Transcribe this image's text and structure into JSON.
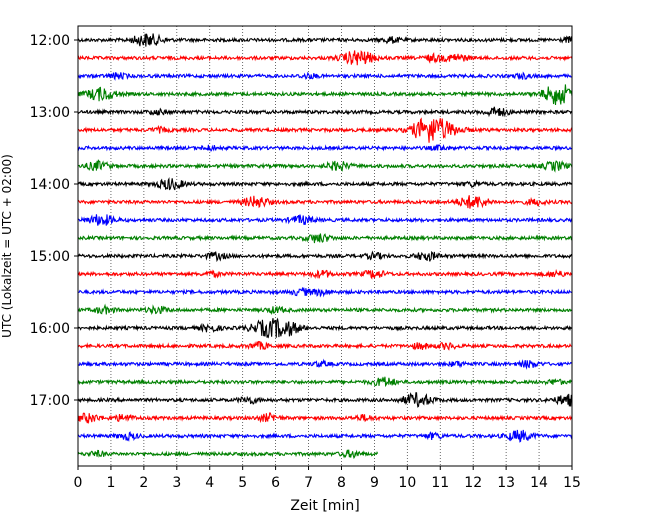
{
  "chart_data": {
    "type": "line",
    "title": "",
    "xlabel": "Zeit  [min]",
    "ylabel": "UTC (Lokalzeit = UTC + 02:00)",
    "xlim": [
      0,
      15
    ],
    "x_ticks": [
      "0",
      "1",
      "2",
      "3",
      "4",
      "5",
      "6",
      "7",
      "8",
      "9",
      "10",
      "11",
      "12",
      "13",
      "14",
      "15"
    ],
    "y_ticks": [
      {
        "label": "12:00",
        "row": 0
      },
      {
        "label": "13:00",
        "row": 4
      },
      {
        "label": "14:00",
        "row": 8
      },
      {
        "label": "15:00",
        "row": 12
      },
      {
        "label": "16:00",
        "row": 16
      },
      {
        "label": "17:00",
        "row": 20
      }
    ],
    "grid": "vertical dotted",
    "row_colors": [
      "#000000",
      "#ff0000",
      "#0000ff",
      "#008000"
    ],
    "rows": [
      {
        "start": "12:00",
        "x_end": 15,
        "events": [
          [
            2.1,
            6
          ],
          [
            9.5,
            2.5
          ],
          [
            15,
            2.5
          ]
        ]
      },
      {
        "start": "12:15",
        "x_end": 15,
        "events": [
          [
            8.5,
            7
          ],
          [
            10.8,
            3
          ],
          [
            11.5,
            3.5
          ]
        ]
      },
      {
        "start": "12:30",
        "x_end": 15,
        "events": [
          [
            1.2,
            2.5
          ],
          [
            7,
            2
          ],
          [
            13.5,
            2
          ]
        ]
      },
      {
        "start": "12:45",
        "x_end": 15,
        "events": [
          [
            0.7,
            6
          ],
          [
            14.5,
            6
          ],
          [
            14.7,
            5
          ]
        ]
      },
      {
        "start": "13:00",
        "x_end": 15,
        "events": [
          [
            2.4,
            2
          ],
          [
            12.7,
            4
          ]
        ]
      },
      {
        "start": "13:15",
        "x_end": 15,
        "events": [
          [
            2.5,
            2
          ],
          [
            10.5,
            5
          ],
          [
            10.9,
            10
          ]
        ]
      },
      {
        "start": "13:30",
        "x_end": 15,
        "events": [
          [
            4,
            2
          ],
          [
            11,
            2
          ]
        ]
      },
      {
        "start": "13:45",
        "x_end": 15,
        "events": [
          [
            0.6,
            4
          ],
          [
            7.9,
            4
          ],
          [
            14.5,
            4
          ]
        ]
      },
      {
        "start": "14:00",
        "x_end": 15,
        "events": [
          [
            2.8,
            5
          ],
          [
            12,
            2
          ]
        ]
      },
      {
        "start": "14:15",
        "x_end": 15,
        "events": [
          [
            5.4,
            5
          ],
          [
            12,
            6
          ],
          [
            13.9,
            2.5
          ]
        ]
      },
      {
        "start": "14:30",
        "x_end": 15,
        "events": [
          [
            0.7,
            5
          ],
          [
            6.8,
            4
          ]
        ]
      },
      {
        "start": "14:45",
        "x_end": 15,
        "events": [
          [
            7.3,
            4
          ]
        ]
      },
      {
        "start": "15:00",
        "x_end": 15,
        "events": [
          [
            4.2,
            3
          ],
          [
            9,
            2.5
          ],
          [
            10.6,
            4
          ]
        ]
      },
      {
        "start": "15:15",
        "x_end": 15,
        "events": [
          [
            4.1,
            2
          ],
          [
            7.4,
            3
          ],
          [
            9,
            3.5
          ],
          [
            14.5,
            2.5
          ]
        ]
      },
      {
        "start": "15:30",
        "x_end": 15,
        "events": [
          [
            6.8,
            3
          ],
          [
            7.4,
            2.5
          ]
        ]
      },
      {
        "start": "15:45",
        "x_end": 15,
        "events": [
          [
            0.8,
            3
          ],
          [
            2.4,
            3
          ],
          [
            6,
            2.5
          ]
        ]
      },
      {
        "start": "16:00",
        "x_end": 15,
        "events": [
          [
            4,
            3
          ],
          [
            5.8,
            8
          ],
          [
            6.4,
            5
          ]
        ]
      },
      {
        "start": "16:15",
        "x_end": 15,
        "events": [
          [
            5.5,
            3
          ],
          [
            10.4,
            2.5
          ],
          [
            11.2,
            2.5
          ]
        ]
      },
      {
        "start": "16:30",
        "x_end": 15,
        "events": [
          [
            7.4,
            2
          ],
          [
            11.5,
            2
          ],
          [
            13.7,
            3
          ]
        ]
      },
      {
        "start": "16:45",
        "x_end": 15,
        "events": [
          [
            9.3,
            4
          ],
          [
            14.5,
            2
          ]
        ]
      },
      {
        "start": "17:00",
        "x_end": 15,
        "events": [
          [
            5.2,
            3
          ],
          [
            10.3,
            6
          ],
          [
            14.9,
            5
          ]
        ]
      },
      {
        "start": "17:15",
        "x_end": 15,
        "events": [
          [
            0.3,
            4
          ],
          [
            1.4,
            3
          ],
          [
            5.8,
            3.5
          ],
          [
            8.7,
            2.5
          ]
        ]
      },
      {
        "start": "17:30",
        "x_end": 15,
        "events": [
          [
            1.5,
            3
          ],
          [
            10.8,
            2.5
          ],
          [
            13.4,
            5
          ]
        ]
      },
      {
        "start": "17:45",
        "x_end": 9.1,
        "events": [
          [
            0.6,
            2
          ],
          [
            8.3,
            3
          ]
        ]
      }
    ]
  }
}
